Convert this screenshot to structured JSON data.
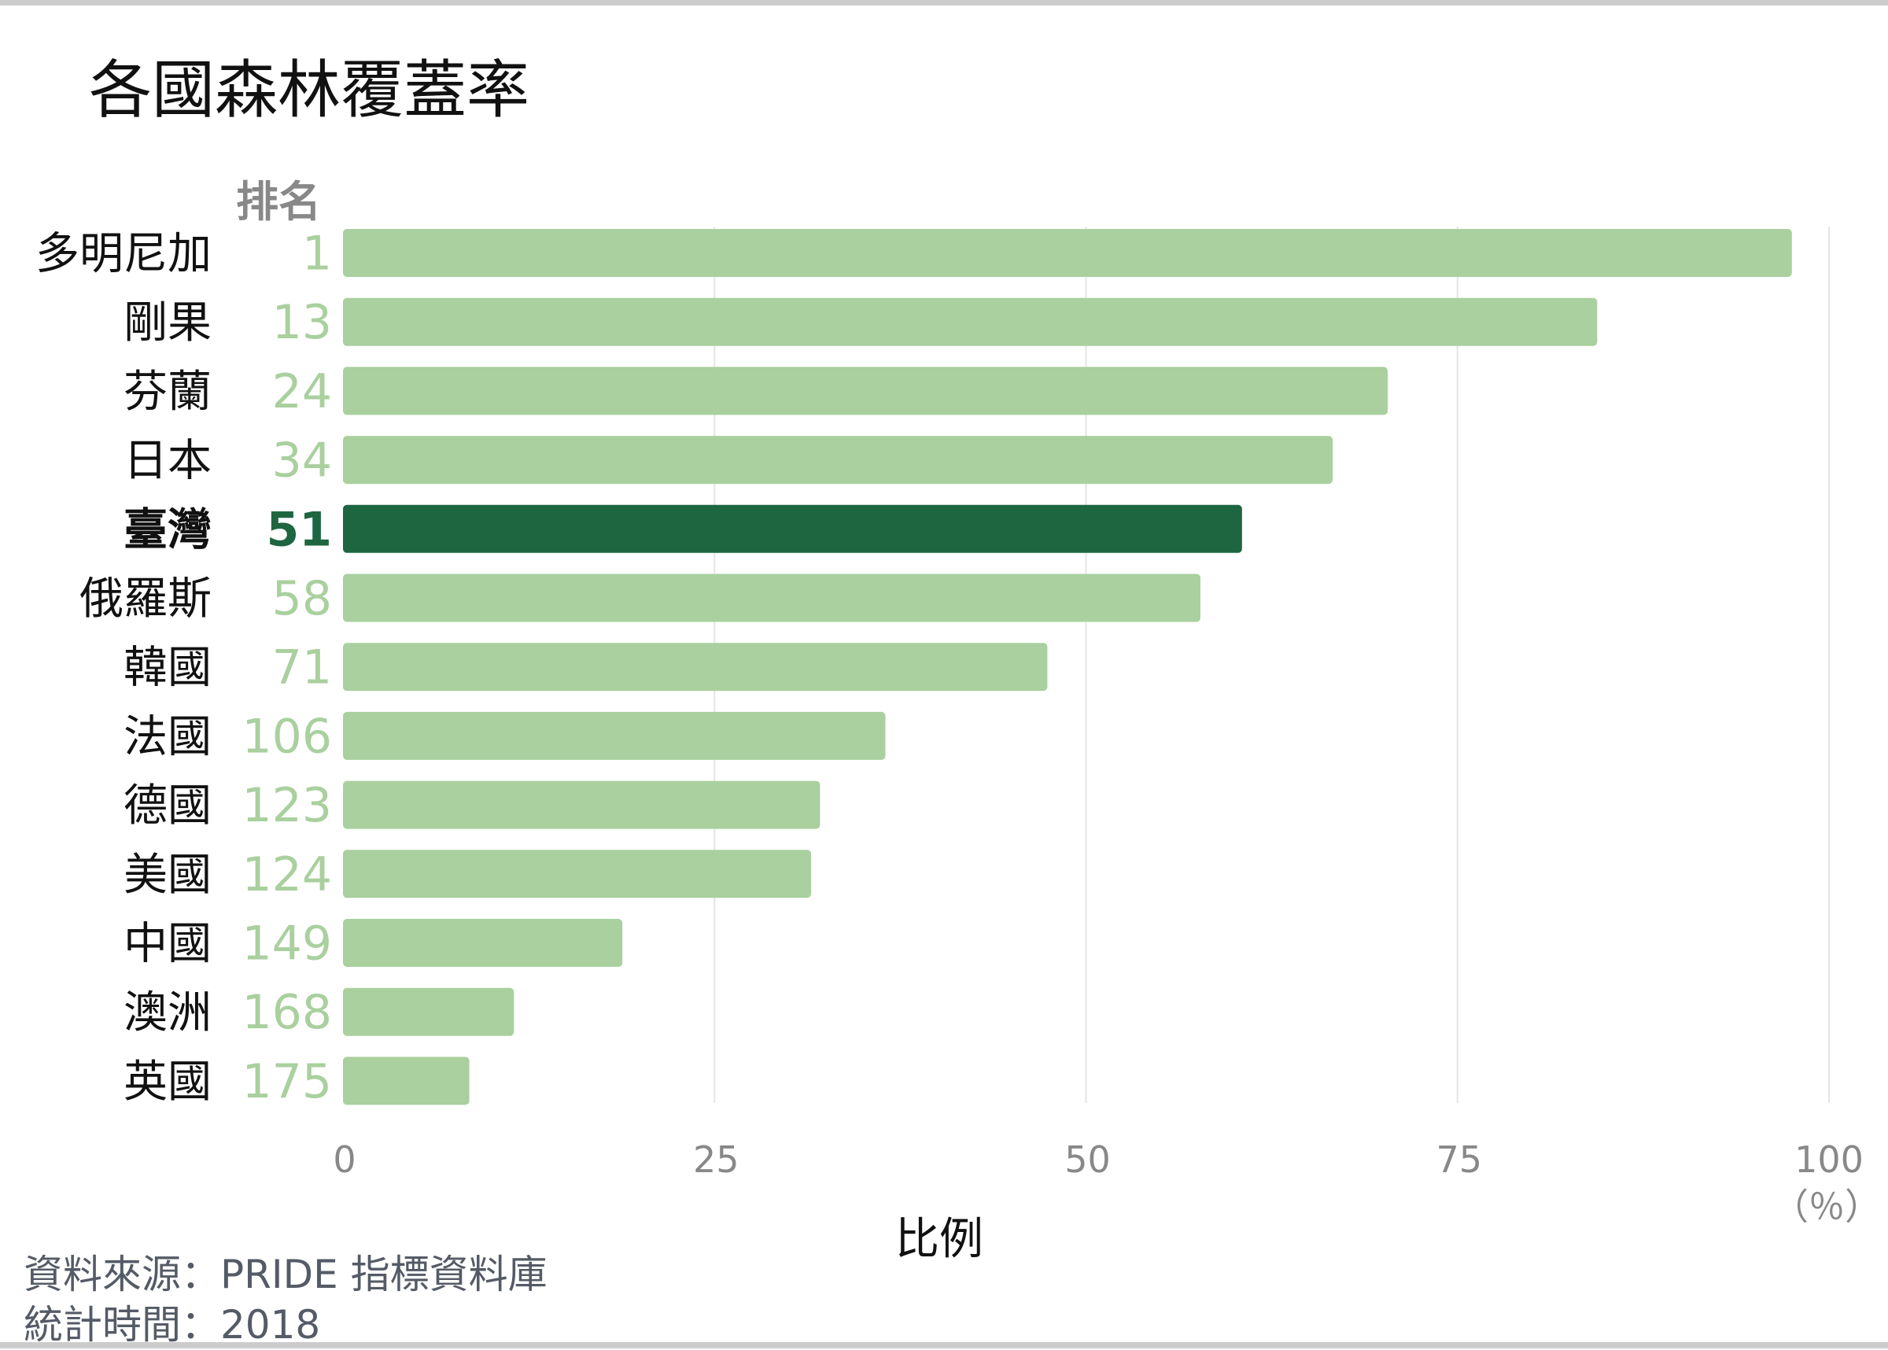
{
  "chart_data": {
    "type": "bar",
    "orientation": "horizontal",
    "title": "各國森林覆蓋率",
    "rank_header": "排名",
    "xlabel": "比例",
    "unit_label": "（％）",
    "xlim": [
      0,
      100
    ],
    "xticks": [
      0,
      25,
      50,
      75,
      100
    ],
    "grid": true,
    "categories": [
      "多明尼加",
      "剛果",
      "芬蘭",
      "日本",
      "臺灣",
      "俄羅斯",
      "韓國",
      "法國",
      "德國",
      "美國",
      "中國",
      "澳洲",
      "英國"
    ],
    "ranks": [
      "1",
      "13",
      "24",
      "34",
      "51",
      "58",
      "71",
      "106",
      "123",
      "124",
      "149",
      "168",
      "175"
    ],
    "values": [
      97.5,
      84.4,
      70.3,
      66.6,
      60.5,
      57.7,
      47.4,
      36.5,
      32.1,
      31.5,
      18.8,
      11.5,
      8.5
    ],
    "highlight": "臺灣"
  },
  "colors": {
    "bar": "#a9d09e",
    "highlight": "#1e6640",
    "rank": "#a9d09e",
    "grid": "#e6e6e6",
    "axis_text": "#888888"
  },
  "source": {
    "line1": "資料來源：PRIDE 指標資料庫",
    "line2": "統計時間：2018"
  }
}
